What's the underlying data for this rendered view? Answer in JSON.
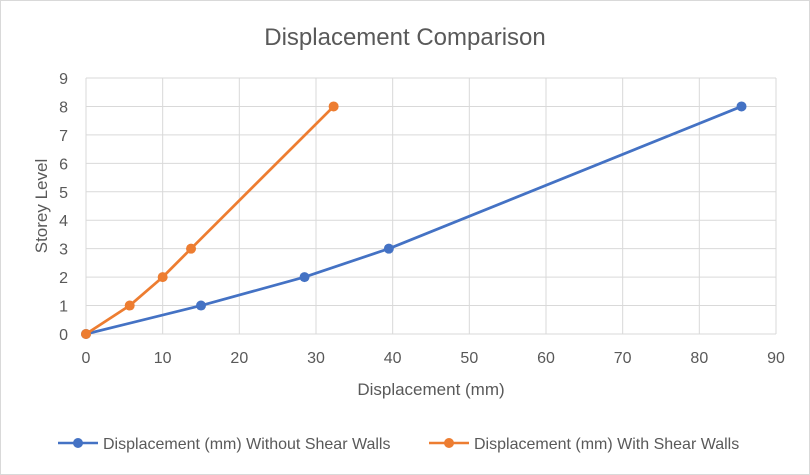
{
  "chart_data": {
    "type": "line",
    "title": "Displacement Comparison",
    "xlabel": "Displacement (mm)",
    "ylabel": "Storey Level",
    "xlim": [
      0,
      90
    ],
    "ylim": [
      0,
      9
    ],
    "x_ticks": [
      "0",
      "10",
      "20",
      "30",
      "40",
      "50",
      "60",
      "70",
      "80",
      "90"
    ],
    "y_ticks": [
      "0",
      "1",
      "2",
      "3",
      "4",
      "5",
      "6",
      "7",
      "8",
      "9"
    ],
    "grid": true,
    "legend_position": "bottom",
    "series": [
      {
        "name": "Displacement (mm) Without Shear Walls",
        "color": "#4472c4",
        "points": [
          {
            "x": 0,
            "y": 0
          },
          {
            "x": 15,
            "y": 1
          },
          {
            "x": 28.5,
            "y": 2
          },
          {
            "x": 39.5,
            "y": 3
          },
          {
            "x": 85.5,
            "y": 8
          }
        ]
      },
      {
        "name": "Displacement (mm) With Shear Walls",
        "color": "#ed7d31",
        "points": [
          {
            "x": 0,
            "y": 0
          },
          {
            "x": 5.7,
            "y": 1
          },
          {
            "x": 10,
            "y": 2
          },
          {
            "x": 13.7,
            "y": 3
          },
          {
            "x": 32.3,
            "y": 8
          }
        ]
      }
    ]
  }
}
